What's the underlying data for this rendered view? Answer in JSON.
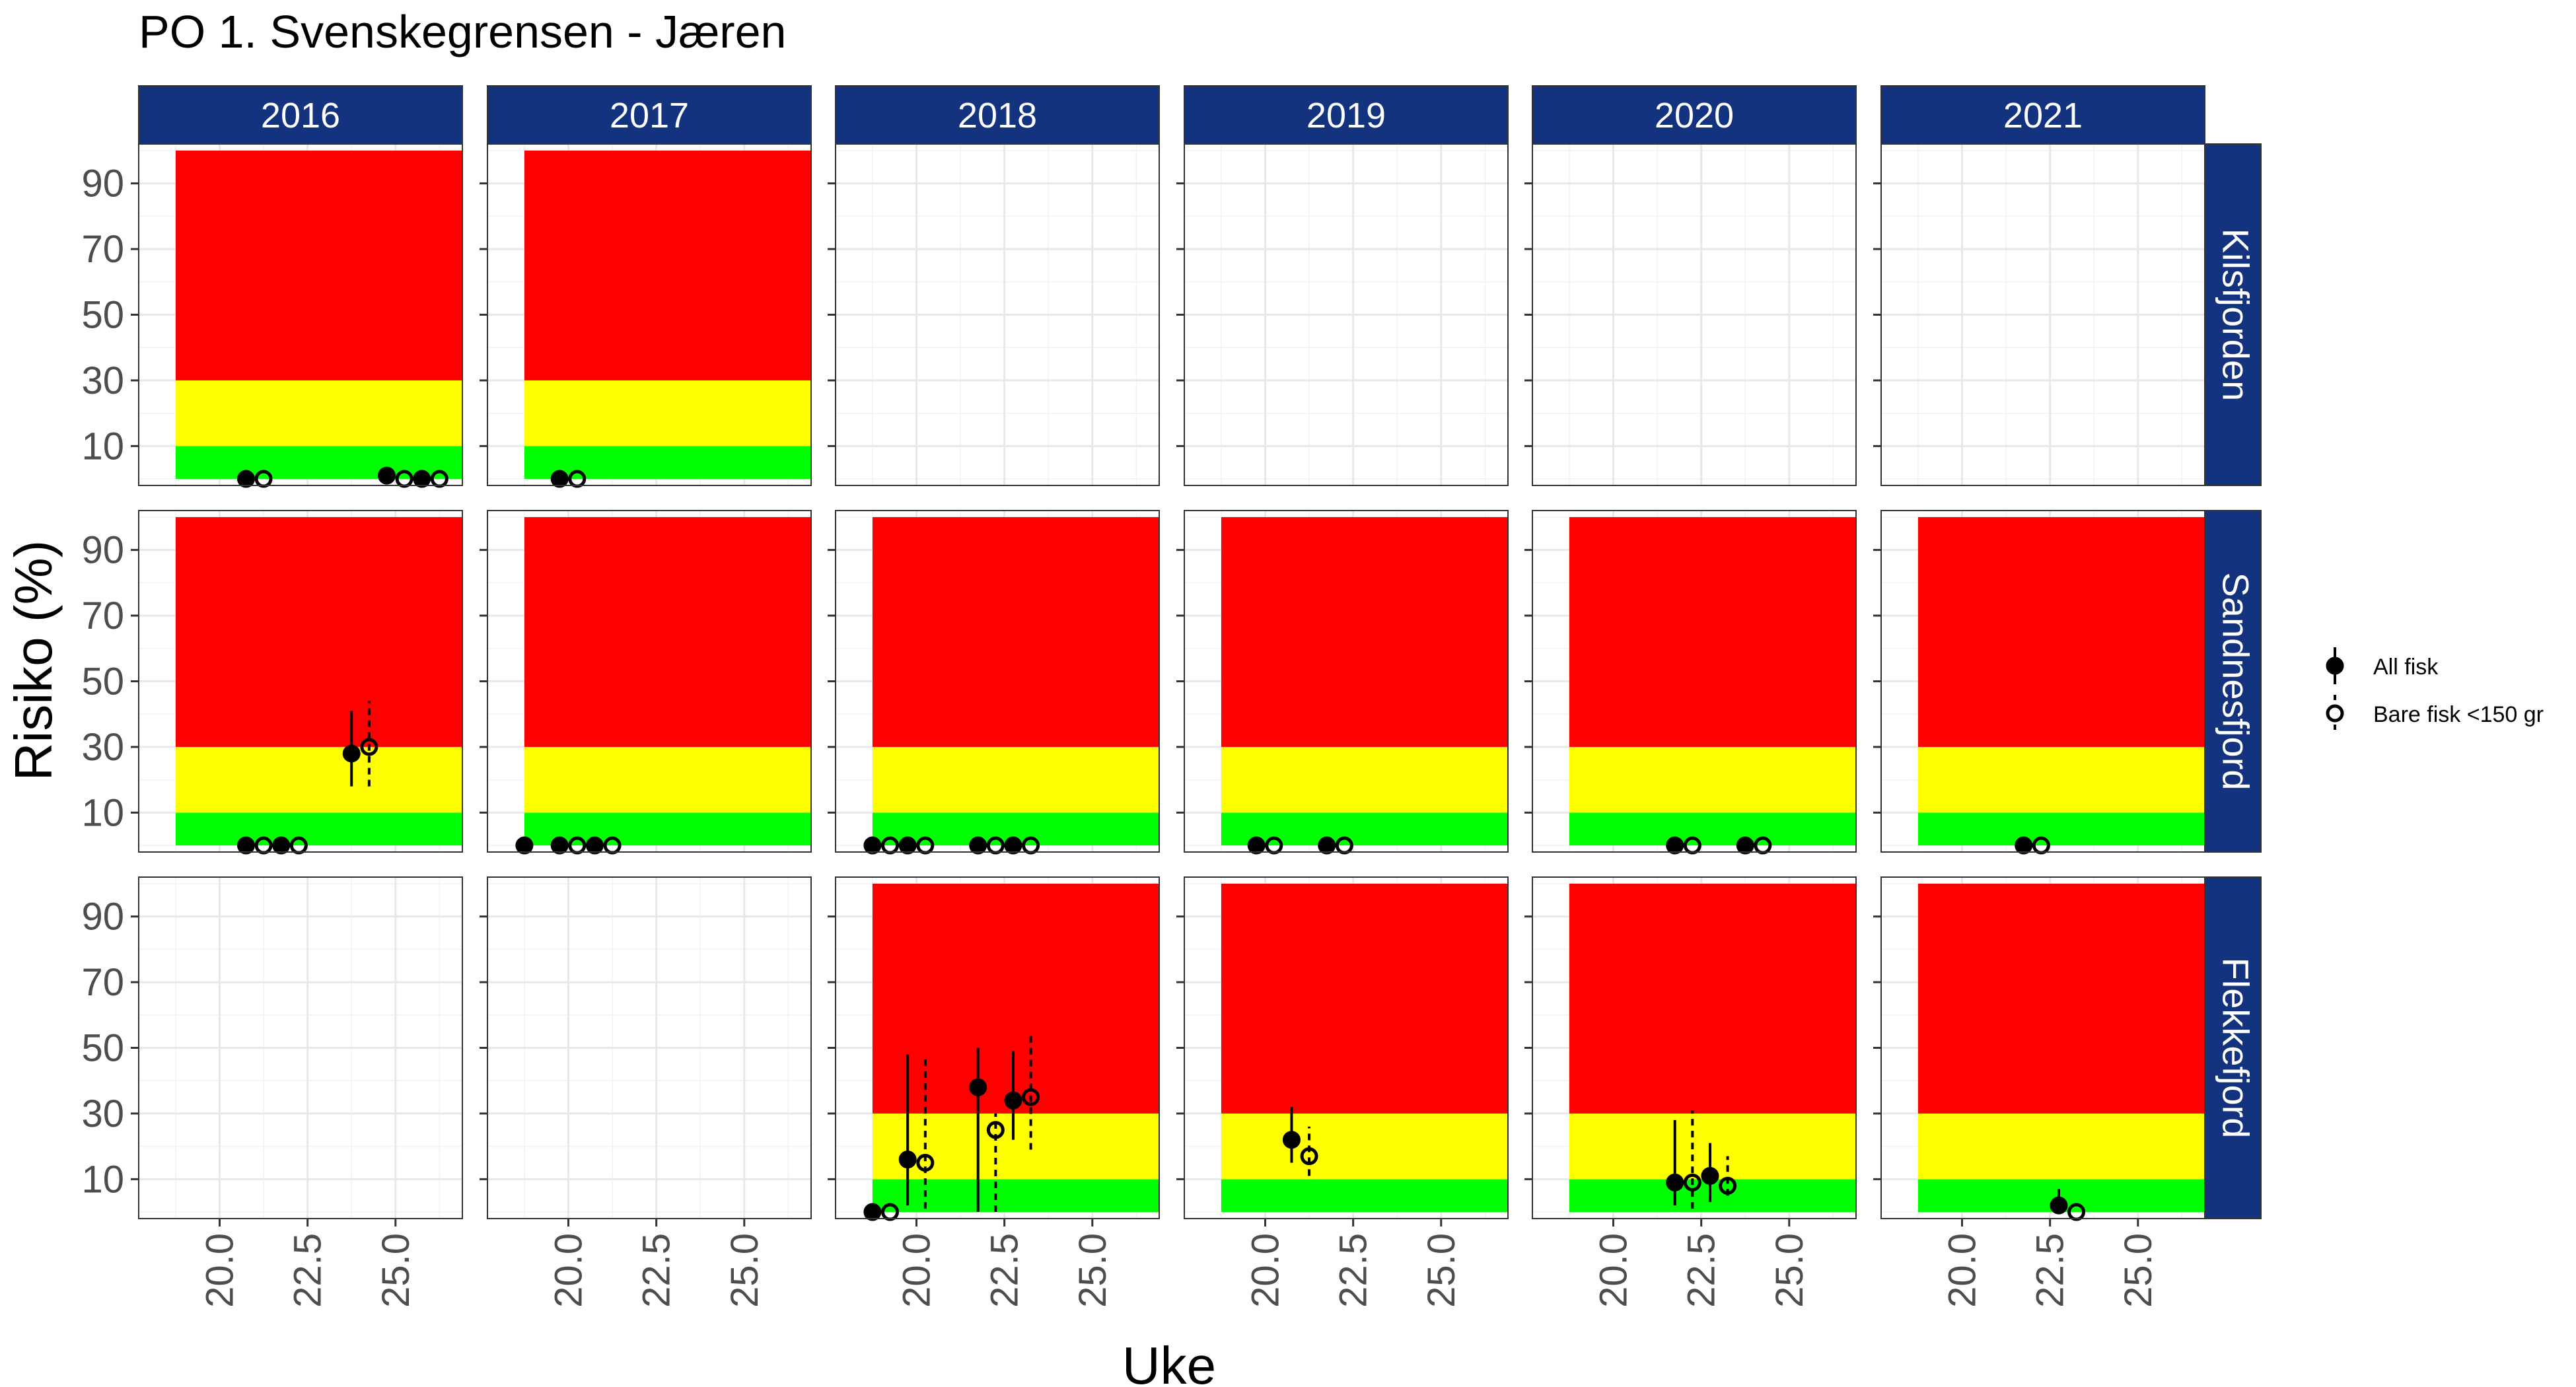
{
  "chart_data": {
    "type": "scatter",
    "title": "PO 1. Svenskegrensen - Jæren",
    "xlabel": "Uke",
    "ylabel": "Risiko (%)",
    "xlim": [
      17.7,
      26.9
    ],
    "ylim": [
      -2,
      102
    ],
    "x_ticks": [
      "20.0",
      "22.5",
      "25.0"
    ],
    "x_tick_values": [
      20.0,
      22.5,
      25.0
    ],
    "y_ticks": [
      "10",
      "30",
      "50",
      "70",
      "90"
    ],
    "y_tick_values": [
      10,
      30,
      50,
      70,
      90
    ],
    "bands": [
      {
        "name": "green",
        "from": 0,
        "to": 10,
        "color": "#00ff00"
      },
      {
        "name": "yellow",
        "from": 10,
        "to": 30,
        "color": "#ffff00"
      },
      {
        "name": "red",
        "from": 30,
        "to": 100,
        "color": "#ff0000"
      }
    ],
    "years": [
      "2016",
      "2017",
      "2018",
      "2019",
      "2020",
      "2021"
    ],
    "locations": [
      "Kilsfjorden",
      "Sandnesfjord",
      "Flekkefjord"
    ],
    "legend": [
      {
        "label": "All fisk",
        "shape": "filled-circle",
        "line": "solid"
      },
      {
        "label": "Bare fisk <150 gr",
        "shape": "open-circle",
        "line": "dashed"
      }
    ],
    "strip_color": "#14337f",
    "panels": [
      {
        "location": "Kilsfjorden",
        "year": "2016",
        "has_data": true,
        "points": [
          {
            "series": "All fisk",
            "x": 20.75,
            "y": 0
          },
          {
            "series": "Bare fisk <150 gr",
            "x": 21.25,
            "y": 0
          },
          {
            "series": "All fisk",
            "x": 24.75,
            "y": 1
          },
          {
            "series": "Bare fisk <150 gr",
            "x": 25.25,
            "y": 0
          },
          {
            "series": "All fisk",
            "x": 25.75,
            "y": 0
          },
          {
            "series": "Bare fisk <150 gr",
            "x": 26.25,
            "y": 0
          }
        ]
      },
      {
        "location": "Kilsfjorden",
        "year": "2017",
        "has_data": true,
        "points": [
          {
            "series": "All fisk",
            "x": 19.75,
            "y": 0
          },
          {
            "series": "Bare fisk <150 gr",
            "x": 20.25,
            "y": 0
          }
        ]
      },
      {
        "location": "Kilsfjorden",
        "year": "2018",
        "has_data": false,
        "points": []
      },
      {
        "location": "Kilsfjorden",
        "year": "2019",
        "has_data": false,
        "points": []
      },
      {
        "location": "Kilsfjorden",
        "year": "2020",
        "has_data": false,
        "points": []
      },
      {
        "location": "Kilsfjorden",
        "year": "2021",
        "has_data": false,
        "points": []
      },
      {
        "location": "Sandnesfjord",
        "year": "2016",
        "has_data": true,
        "points": [
          {
            "series": "All fisk",
            "x": 20.75,
            "y": 0
          },
          {
            "series": "Bare fisk <150 gr",
            "x": 21.25,
            "y": 0
          },
          {
            "series": "All fisk",
            "x": 21.75,
            "y": 0
          },
          {
            "series": "Bare fisk <150 gr",
            "x": 22.25,
            "y": 0
          },
          {
            "series": "All fisk",
            "x": 23.75,
            "y": 28,
            "lo": 18,
            "hi": 41
          },
          {
            "series": "Bare fisk <150 gr",
            "x": 24.25,
            "y": 30,
            "lo": 18,
            "hi": 44
          }
        ]
      },
      {
        "location": "Sandnesfjord",
        "year": "2017",
        "has_data": true,
        "points": [
          {
            "series": "All fisk",
            "x": 18.75,
            "y": 0
          },
          {
            "series": "All fisk",
            "x": 19.75,
            "y": 0
          },
          {
            "series": "Bare fisk <150 gr",
            "x": 20.25,
            "y": 0
          },
          {
            "series": "All fisk",
            "x": 20.75,
            "y": 0
          },
          {
            "series": "Bare fisk <150 gr",
            "x": 21.25,
            "y": 0
          }
        ]
      },
      {
        "location": "Sandnesfjord",
        "year": "2018",
        "has_data": true,
        "points": [
          {
            "series": "All fisk",
            "x": 18.75,
            "y": 0
          },
          {
            "series": "Bare fisk <150 gr",
            "x": 19.25,
            "y": 0
          },
          {
            "series": "All fisk",
            "x": 19.75,
            "y": 0
          },
          {
            "series": "Bare fisk <150 gr",
            "x": 20.25,
            "y": 0
          },
          {
            "series": "All fisk",
            "x": 21.75,
            "y": 0
          },
          {
            "series": "Bare fisk <150 gr",
            "x": 22.25,
            "y": 0
          },
          {
            "series": "All fisk",
            "x": 22.75,
            "y": 0
          },
          {
            "series": "Bare fisk <150 gr",
            "x": 23.25,
            "y": 0
          }
        ]
      },
      {
        "location": "Sandnesfjord",
        "year": "2019",
        "has_data": true,
        "points": [
          {
            "series": "All fisk",
            "x": 19.75,
            "y": 0
          },
          {
            "series": "Bare fisk <150 gr",
            "x": 20.25,
            "y": 0
          },
          {
            "series": "All fisk",
            "x": 21.75,
            "y": 0
          },
          {
            "series": "Bare fisk <150 gr",
            "x": 22.25,
            "y": 0
          }
        ]
      },
      {
        "location": "Sandnesfjord",
        "year": "2020",
        "has_data": true,
        "points": [
          {
            "series": "All fisk",
            "x": 21.75,
            "y": 0
          },
          {
            "series": "Bare fisk <150 gr",
            "x": 22.25,
            "y": 0
          },
          {
            "series": "All fisk",
            "x": 23.75,
            "y": 0
          },
          {
            "series": "Bare fisk <150 gr",
            "x": 24.25,
            "y": 0
          }
        ]
      },
      {
        "location": "Sandnesfjord",
        "year": "2021",
        "has_data": true,
        "points": [
          {
            "series": "All fisk",
            "x": 21.75,
            "y": 0
          },
          {
            "series": "Bare fisk <150 gr",
            "x": 22.25,
            "y": 0
          }
        ]
      },
      {
        "location": "Flekkefjord",
        "year": "2016",
        "has_data": false,
        "points": []
      },
      {
        "location": "Flekkefjord",
        "year": "2017",
        "has_data": false,
        "points": []
      },
      {
        "location": "Flekkefjord",
        "year": "2018",
        "has_data": true,
        "points": [
          {
            "series": "All fisk",
            "x": 18.75,
            "y": 0
          },
          {
            "series": "Bare fisk <150 gr",
            "x": 19.25,
            "y": 0
          },
          {
            "series": "All fisk",
            "x": 19.75,
            "y": 16,
            "lo": 2,
            "hi": 48
          },
          {
            "series": "Bare fisk <150 gr",
            "x": 20.25,
            "y": 15,
            "lo": 1,
            "hi": 48
          },
          {
            "series": "All fisk",
            "x": 21.75,
            "y": 38,
            "lo": 0,
            "hi": 50
          },
          {
            "series": "Bare fisk <150 gr",
            "x": 22.25,
            "y": 25,
            "lo": 0,
            "hi": 30
          },
          {
            "series": "All fisk",
            "x": 22.75,
            "y": 34,
            "lo": 22,
            "hi": 49
          },
          {
            "series": "Bare fisk <150 gr",
            "x": 23.25,
            "y": 35,
            "lo": 19,
            "hi": 55
          }
        ]
      },
      {
        "location": "Flekkefjord",
        "year": "2019",
        "has_data": true,
        "points": [
          {
            "series": "All fisk",
            "x": 20.75,
            "y": 22,
            "lo": 15,
            "hi": 32
          },
          {
            "series": "Bare fisk <150 gr",
            "x": 21.25,
            "y": 17,
            "lo": 11,
            "hi": 26
          }
        ]
      },
      {
        "location": "Flekkefjord",
        "year": "2020",
        "has_data": true,
        "points": [
          {
            "series": "All fisk",
            "x": 21.75,
            "y": 9,
            "lo": 2,
            "hi": 28
          },
          {
            "series": "Bare fisk <150 gr",
            "x": 22.25,
            "y": 9,
            "lo": 1,
            "hi": 31
          },
          {
            "series": "All fisk",
            "x": 22.75,
            "y": 11,
            "lo": 3,
            "hi": 21
          },
          {
            "series": "Bare fisk <150 gr",
            "x": 23.25,
            "y": 8,
            "lo": 5,
            "hi": 17
          }
        ]
      },
      {
        "location": "Flekkefjord",
        "year": "2021",
        "has_data": true,
        "points": [
          {
            "series": "All fisk",
            "x": 22.75,
            "y": 2,
            "lo": 0,
            "hi": 7
          },
          {
            "series": "Bare fisk <150 gr",
            "x": 23.25,
            "y": 0
          }
        ]
      }
    ]
  }
}
